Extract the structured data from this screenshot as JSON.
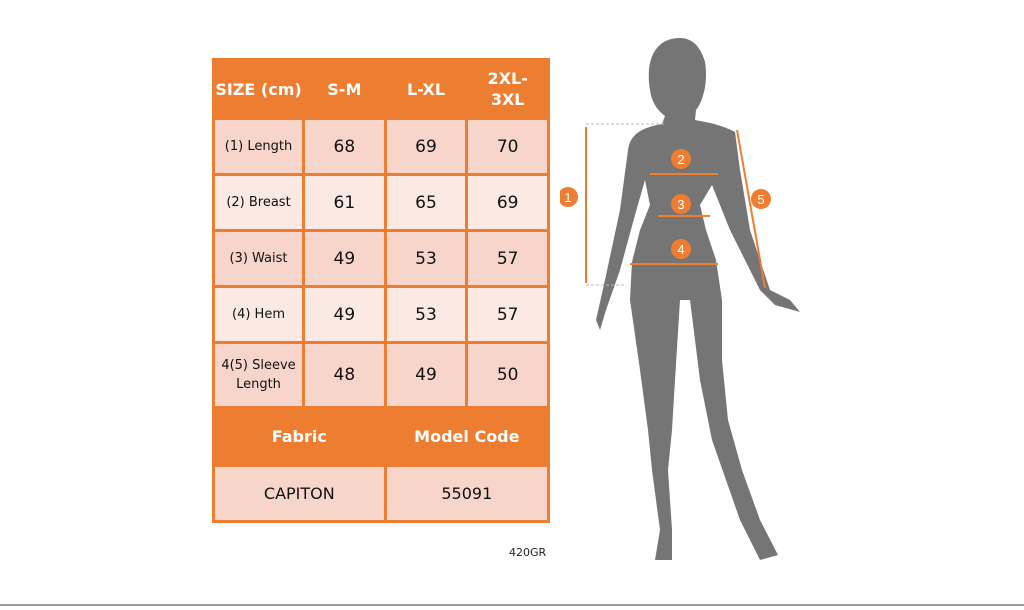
{
  "colors": {
    "accent": "#ed7d31",
    "row_dark": "#f8d5cb",
    "row_light": "#fbe9e4",
    "silhouette": "#757575"
  },
  "header": {
    "size": "SIZE (cm)",
    "cols": [
      "S-M",
      "L-XL",
      "2XL-3XL"
    ]
  },
  "rows": [
    {
      "label": "(1) Length",
      "values": [
        "68",
        "69",
        "70"
      ]
    },
    {
      "label": "(2) Breast",
      "values": [
        "61",
        "65",
        "69"
      ]
    },
    {
      "label": "(3) Waist",
      "values": [
        "49",
        "53",
        "57"
      ]
    },
    {
      "label": "(4) Hem",
      "values": [
        "49",
        "53",
        "57"
      ]
    },
    {
      "label": "4(5) Sleeve Length",
      "values": [
        "48",
        "49",
        "50"
      ]
    }
  ],
  "footer": {
    "fabric_label": "Fabric",
    "model_label": "Model Code",
    "fabric": "CAPITON",
    "model": "55091"
  },
  "note": "420GR",
  "markers": [
    "1",
    "2",
    "3",
    "4",
    "5"
  ]
}
